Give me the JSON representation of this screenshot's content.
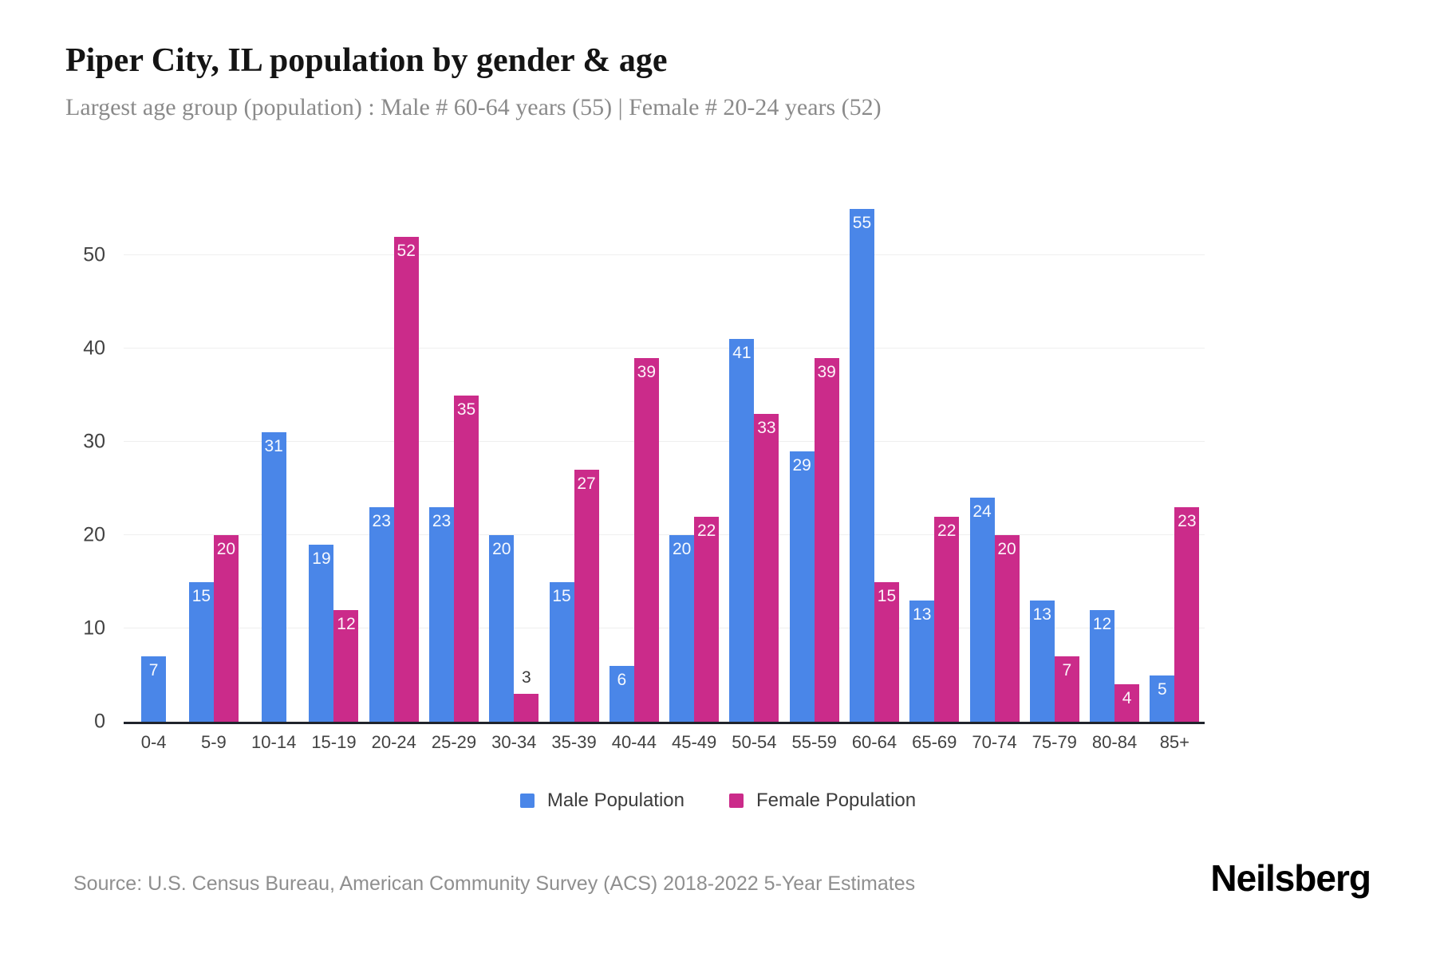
{
  "chart_data": {
    "type": "bar",
    "title": "Piper City, IL population by gender & age",
    "subtitle": "Largest age group (population) : Male # 60-64 years (55) | Female # 20-24 years (52)",
    "categories": [
      "0-4",
      "5-9",
      "10-14",
      "15-19",
      "20-24",
      "25-29",
      "30-34",
      "35-39",
      "40-44",
      "45-49",
      "50-54",
      "55-59",
      "60-64",
      "65-69",
      "70-74",
      "75-79",
      "80-84",
      "85+"
    ],
    "series": [
      {
        "name": "Male Population",
        "color": "#4a86e8",
        "values": [
          7,
          15,
          31,
          19,
          23,
          23,
          20,
          15,
          6,
          20,
          41,
          29,
          55,
          13,
          24,
          13,
          12,
          5
        ]
      },
      {
        "name": "Female Population",
        "color": "#cb2b8a",
        "values": [
          0,
          20,
          0,
          12,
          52,
          35,
          3,
          27,
          39,
          22,
          33,
          39,
          15,
          22,
          20,
          7,
          4,
          23
        ]
      }
    ],
    "xlabel": "",
    "ylabel": "",
    "ylim": [
      0,
      55
    ],
    "yticks": [
      0,
      10,
      20,
      30,
      40,
      50
    ],
    "grid": true,
    "legend_position": "bottom",
    "value_labels": true
  },
  "footer": {
    "source": "Source: U.S. Census Bureau, American Community Survey (ACS) 2018-2022 5-Year Estimates",
    "logo": "Neilsberg"
  },
  "colors": {
    "male": "#4a86e8",
    "female": "#cb2b8a",
    "axis_line": "#20242c",
    "grid_line": "#efefef",
    "tick_text": "#424242",
    "subtitle_text": "#8a8a8a",
    "source_text": "#8f8f8f"
  }
}
